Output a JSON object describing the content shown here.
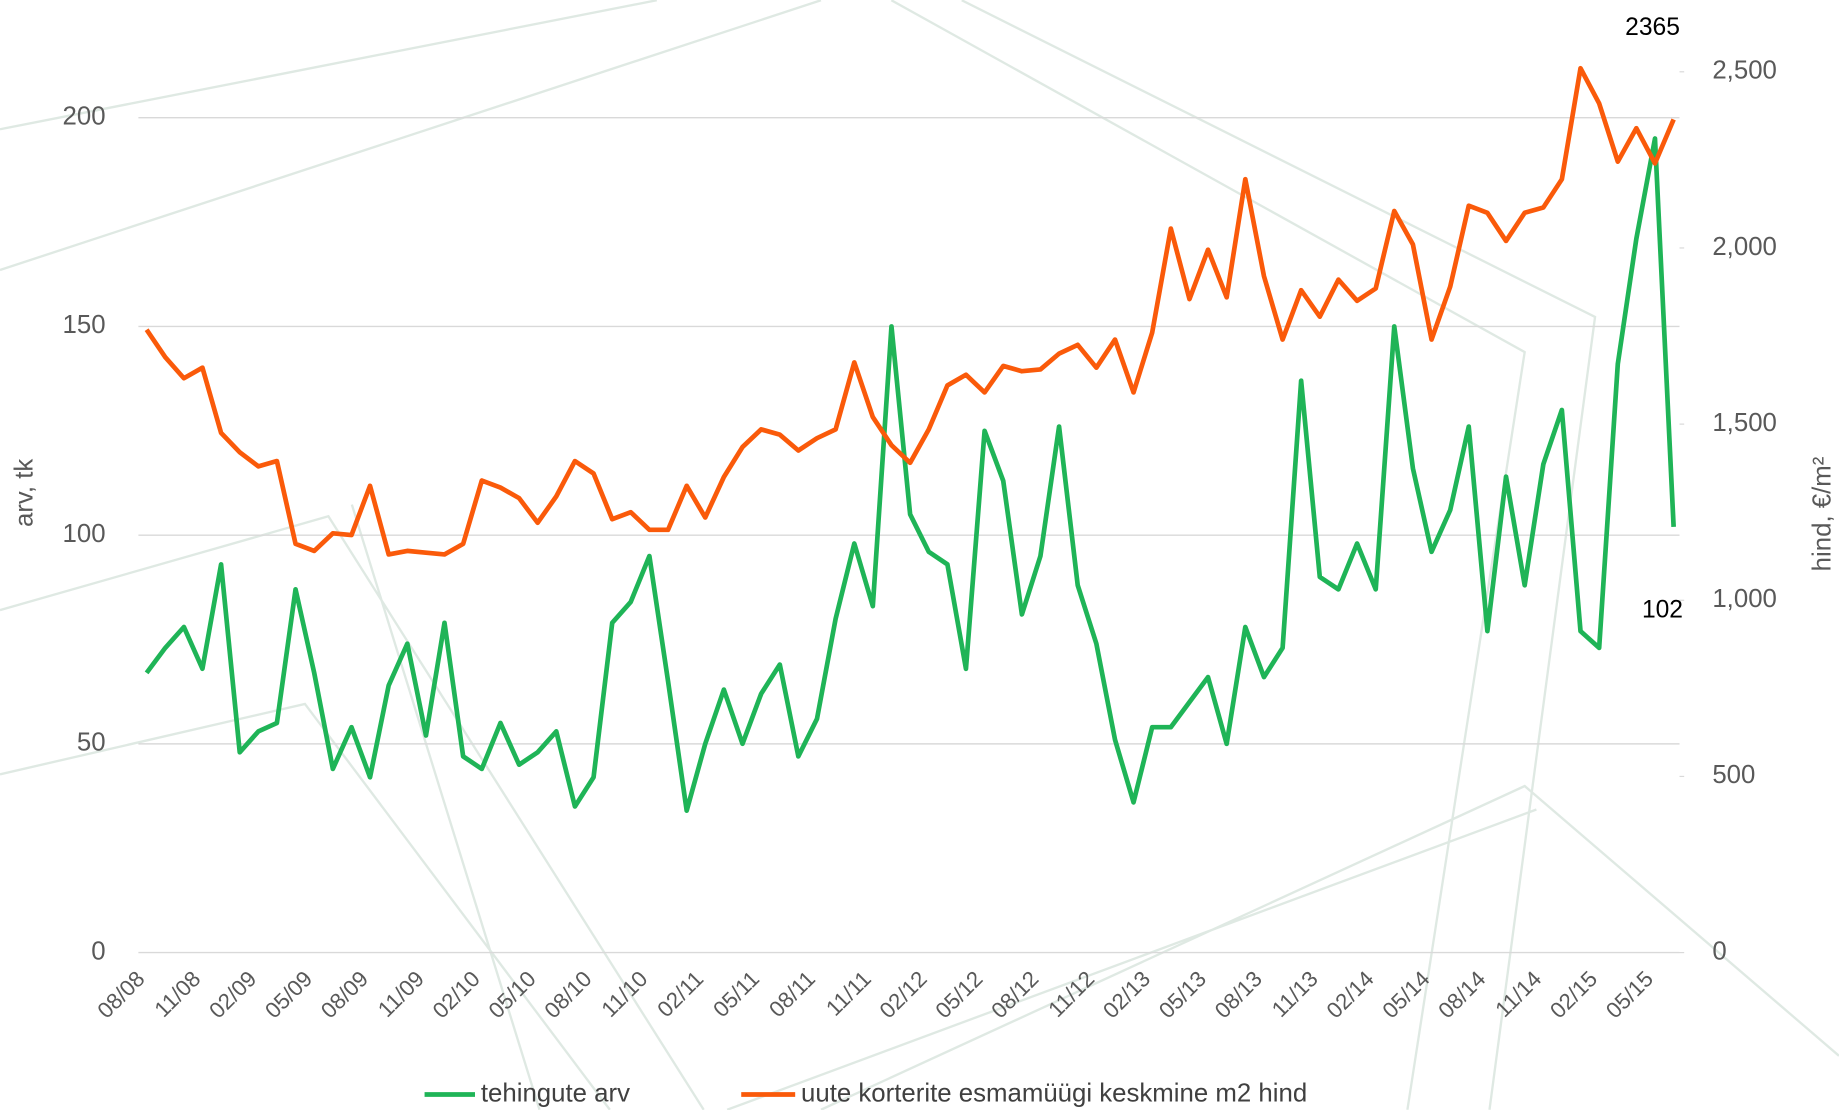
{
  "chart_data": {
    "type": "line",
    "categories": [
      "08/08",
      null,
      null,
      "11/08",
      null,
      null,
      "02/09",
      null,
      null,
      "05/09",
      null,
      null,
      "08/09",
      null,
      null,
      "11/09",
      null,
      null,
      "02/10",
      null,
      null,
      "05/10",
      null,
      null,
      "08/10",
      null,
      null,
      "11/10",
      null,
      null,
      "02/11",
      null,
      null,
      "05/11",
      null,
      null,
      "08/11",
      null,
      null,
      "11/11",
      null,
      null,
      "02/12",
      null,
      null,
      "05/12",
      null,
      null,
      "08/12",
      null,
      null,
      "11/12",
      null,
      null,
      "02/13",
      null,
      null,
      "05/13",
      null,
      null,
      "08/13",
      null,
      null,
      "11/13",
      null,
      null,
      "02/14",
      null,
      null,
      "05/14",
      null,
      null,
      "08/14",
      null,
      null,
      "11/14",
      null,
      null,
      "02/15",
      null,
      null,
      "05/15",
      null
    ],
    "series": [
      {
        "name": "tehingute arv",
        "color": "#1fb457",
        "data_labels": "last",
        "values": [
          67,
          73,
          78,
          68,
          93,
          48,
          53,
          55,
          87,
          67,
          44,
          54,
          42,
          64,
          74,
          52,
          79,
          47,
          44,
          55,
          45,
          48,
          53,
          35,
          42,
          79,
          84,
          95,
          65,
          34,
          50,
          63,
          50,
          62,
          69,
          47,
          56,
          80,
          98,
          83,
          150,
          105,
          96,
          93,
          68,
          125,
          113,
          81,
          95,
          126,
          88,
          74,
          51,
          36,
          54,
          54,
          60,
          66,
          50,
          78,
          66,
          73,
          137,
          90,
          87,
          98,
          87,
          150,
          116,
          96,
          106,
          126,
          77,
          114,
          88,
          117,
          130,
          77,
          73,
          141,
          171,
          195,
          102
        ]
      },
      {
        "name": "uute korterite esmamüügi keskmine m2 hind",
        "color": "#fa5a0a",
        "axis": "y2",
        "data_labels": "last",
        "values": [
          1768,
          1690,
          1630,
          1660,
          1475,
          1420,
          1380,
          1395,
          1160,
          1140,
          1190,
          1185,
          1325,
          1130,
          1140,
          1135,
          1130,
          1160,
          1340,
          1320,
          1290,
          1220,
          1295,
          1395,
          1360,
          1230,
          1250,
          1200,
          1200,
          1325,
          1235,
          1350,
          1435,
          1485,
          1470,
          1425,
          1460,
          1485,
          1675,
          1520,
          1440,
          1390,
          1485,
          1610,
          1640,
          1590,
          1665,
          1650,
          1655,
          1700,
          1725,
          1660,
          1740,
          1590,
          1760,
          2055,
          1855,
          1995,
          1860,
          2195,
          1920,
          1740,
          1880,
          1805,
          1910,
          1850,
          1885,
          2105,
          2010,
          1740,
          1890,
          2120,
          2100,
          2020,
          2100,
          2115,
          2195,
          2510,
          2410,
          2245,
          2340,
          2240,
          2365
        ]
      }
    ],
    "y_label": "arv, tk",
    "y2_label": "hind, €/m²",
    "ylim": [
      0,
      211
    ],
    "yticks": [
      0,
      50,
      100,
      150,
      200
    ],
    "y2lim": [
      0,
      2500
    ],
    "y2ticks": [
      0,
      500,
      {
        "value": 1000,
        "label": "1,000"
      },
      {
        "value": 1500,
        "label": "1,500"
      },
      {
        "value": 2000,
        "label": "2,000"
      },
      {
        "value": 2500,
        "label": "2,500"
      }
    ],
    "grid": true,
    "legend": "bottom"
  }
}
